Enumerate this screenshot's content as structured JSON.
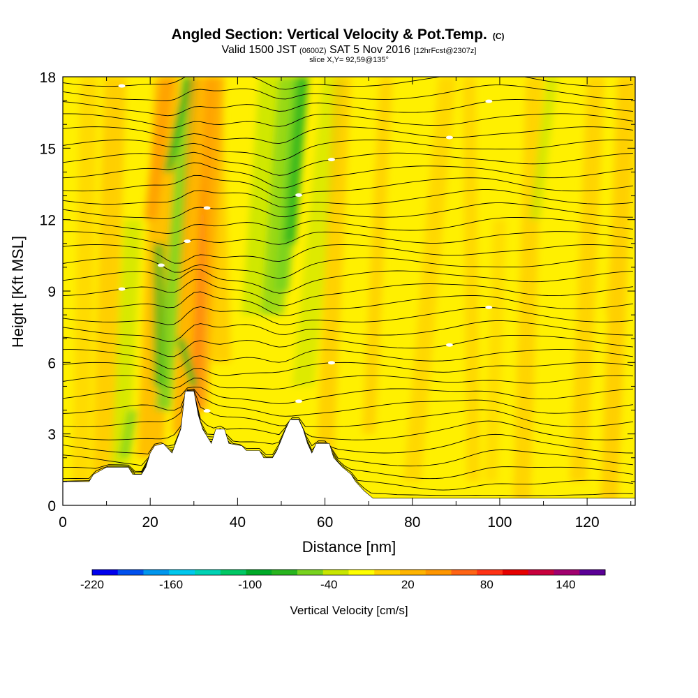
{
  "title": {
    "main": "Angled Section: Vertical Velocity & Pot.Temp.",
    "main_suffix": "(C)",
    "line2_a": "Valid 1500 JST",
    "line2_b": "(0600Z)",
    "line2_c": "SAT 5 Nov 2016",
    "line2_d": "[12hrFcst@2307z]",
    "line3": "slice X,Y= 92,59@135°"
  },
  "chart_data": {
    "type": "heatmap",
    "xlabel": "Distance [nm]",
    "ylabel": "Height [Kft MSL]",
    "xlim": [
      0,
      131
    ],
    "ylim": [
      0,
      18
    ],
    "x_ticks": [
      "0",
      "20",
      "40",
      "60",
      "80",
      "100",
      "120"
    ],
    "y_ticks": [
      "0",
      "3",
      "6",
      "9",
      "12",
      "15",
      "18"
    ],
    "colorbar": {
      "label": "Vertical Velocity [cm/s]",
      "tick_labels": [
        "-220",
        "-160",
        "-100",
        "-40",
        "20",
        "80",
        "140"
      ],
      "min": -220,
      "max": 170,
      "step": 20,
      "colors": [
        "#0000ee",
        "#0050ee",
        "#0096ee",
        "#00c8ee",
        "#00d2b4",
        "#00c864",
        "#00aa28",
        "#28b41e",
        "#78d21e",
        "#c8e600",
        "#ffff00",
        "#ffd200",
        "#ffb400",
        "#ff9600",
        "#ff6414",
        "#ff3214",
        "#e60000",
        "#c8003c",
        "#a0006e",
        "#5a0096"
      ]
    },
    "field_colors": {
      "neutral": "#fff000",
      "weak_up": "#ffd200",
      "up": "#ffb400",
      "strong_up": "#ff9600",
      "very_strong_up": "#ff6414",
      "weak_down": "#c8e600",
      "down": "#78d21e",
      "strong_down": "#28b41e"
    },
    "terrain_kft": [
      [
        0,
        1
      ],
      [
        6,
        1
      ],
      [
        7,
        1.3
      ],
      [
        10,
        1.6
      ],
      [
        15,
        1.6
      ],
      [
        16,
        1.3
      ],
      [
        18,
        1.3
      ],
      [
        19,
        1.6
      ],
      [
        20,
        2.2
      ],
      [
        21,
        2.5
      ],
      [
        23,
        2.6
      ],
      [
        25,
        2.2
      ],
      [
        27,
        3.2
      ],
      [
        28,
        4.8
      ],
      [
        30,
        4.8
      ],
      [
        31,
        3.8
      ],
      [
        32,
        3.2
      ],
      [
        34,
        2.6
      ],
      [
        35,
        3.2
      ],
      [
        37,
        3.2
      ],
      [
        38,
        2.6
      ],
      [
        41,
        2.5
      ],
      [
        42,
        2.3
      ],
      [
        45,
        2.3
      ],
      [
        46,
        2.0
      ],
      [
        48,
        2.0
      ],
      [
        49,
        2.3
      ],
      [
        51,
        3.2
      ],
      [
        52,
        3.6
      ],
      [
        54,
        3.6
      ],
      [
        55,
        3.2
      ],
      [
        56,
        2.6
      ],
      [
        57,
        2.2
      ],
      [
        58,
        2.6
      ],
      [
        61,
        2.6
      ],
      [
        62,
        2.0
      ],
      [
        64,
        1.6
      ],
      [
        66,
        1.3
      ],
      [
        67,
        1.0
      ],
      [
        69,
        0.6
      ],
      [
        71,
        0.3
      ],
      [
        131,
        0.3
      ]
    ],
    "contour_interval_C": 2,
    "contour_count": 33
  }
}
